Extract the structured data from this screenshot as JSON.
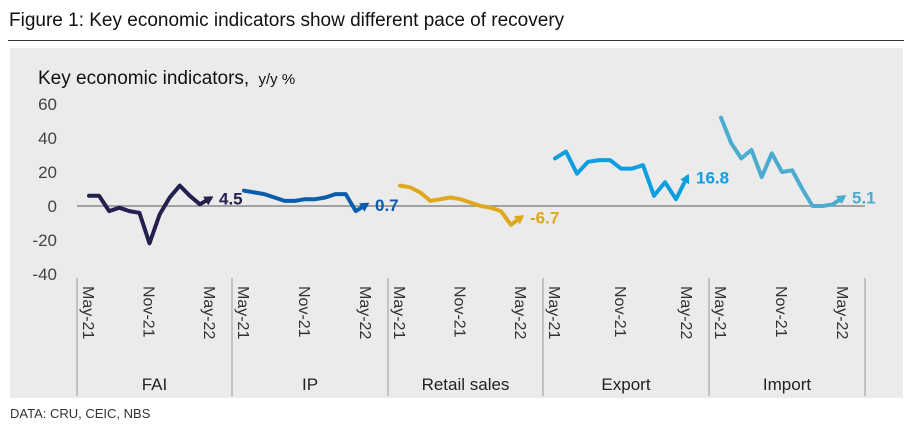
{
  "figure_title": "Figure 1: Key economic indicators show different pace of recovery",
  "source": "DATA: CRU, CEIC, NBS",
  "chart_data": {
    "type": "line",
    "title": "Key economic indicators,",
    "title_unit": "y/y %",
    "ylim": [
      -40,
      60
    ],
    "yticks": [
      60,
      40,
      20,
      0,
      -20,
      -40
    ],
    "grid": false,
    "month_ticks": [
      "May-21",
      "Nov-21",
      "May-22"
    ],
    "x": [
      "May-21",
      "Jun-21",
      "Jul-21",
      "Aug-21",
      "Sep-21",
      "Oct-21",
      "Nov-21",
      "Dec-21",
      "Jan-22",
      "Feb-22",
      "Mar-22",
      "Apr-22",
      "May-22"
    ],
    "series": [
      {
        "name": "FAI",
        "color": "#231f4e",
        "end_label": "4.5",
        "values": [
          6,
          6,
          -3,
          -1,
          -3,
          -4,
          -22,
          -5,
          5,
          12,
          6,
          1,
          4.5
        ]
      },
      {
        "name": "IP",
        "color": "#0a5cad",
        "end_label": "0.7",
        "values": [
          9,
          8,
          7,
          5,
          3,
          3,
          4,
          4,
          5,
          7,
          7,
          -3,
          0.7
        ]
      },
      {
        "name": "Retail sales",
        "color": "#e0a81c",
        "end_label": "-6.7",
        "values": [
          12,
          11,
          8,
          3,
          4,
          5,
          4,
          2,
          0,
          -1,
          -3,
          -11,
          -6.7
        ]
      },
      {
        "name": "Export",
        "color": "#0d9ee0",
        "end_label": "16.8",
        "values": [
          28,
          32,
          19,
          26,
          27,
          27,
          22,
          22,
          24,
          6,
          14,
          4,
          16.8
        ]
      },
      {
        "name": "Import",
        "color": "#4bacd0",
        "end_label": "5.1",
        "values": [
          52,
          37,
          28,
          33,
          17,
          31,
          20,
          21,
          10,
          0,
          0,
          1,
          5.1
        ]
      }
    ]
  }
}
